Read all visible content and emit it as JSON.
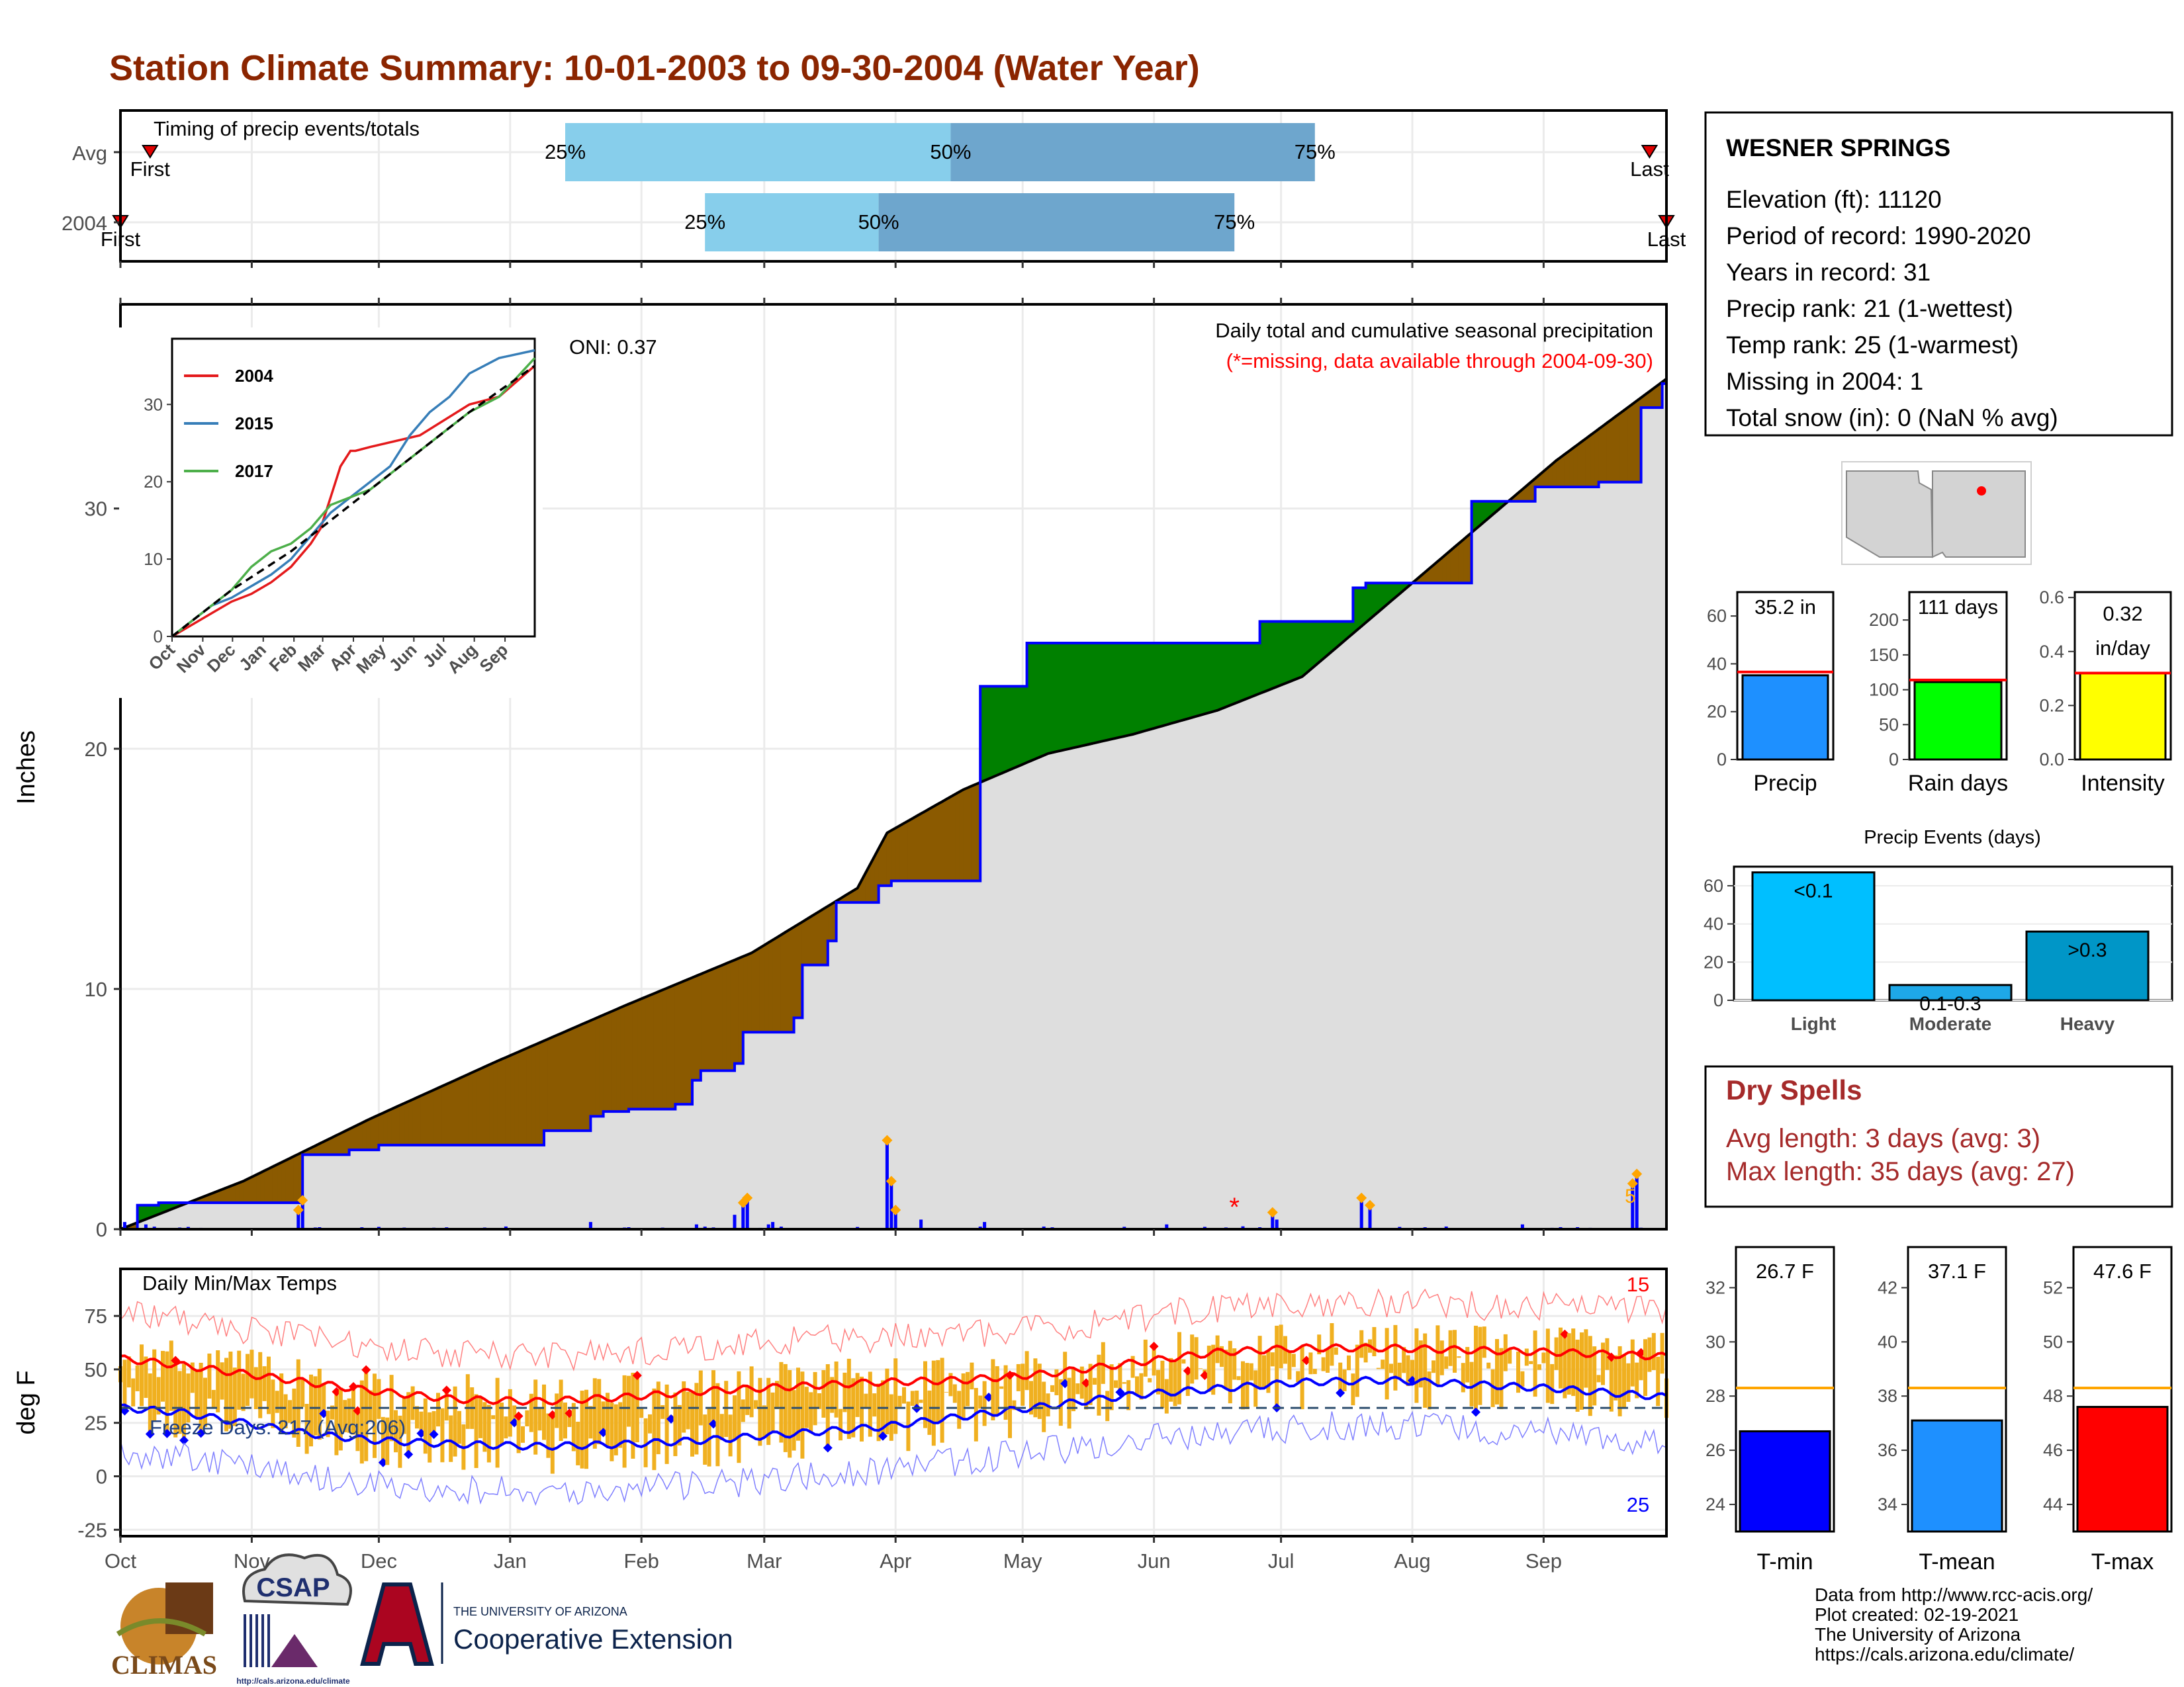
{
  "title": "Station Climate Summary: 10-01-2003 to 09-30-2004 (Water Year)",
  "colors": {
    "title": "#8b2500",
    "q_light": "#87ceeb",
    "q_dark": "#6ea6cd",
    "deficit": "#8b5a00",
    "surplus": "#008000",
    "cum_obs": "#0000ff",
    "cum_avg": "#000000",
    "fill": "#dedede",
    "tmax": "#ff0000",
    "tmin": "#0000ff",
    "temp_bar": "#f0b020"
  },
  "timing": {
    "title": "Timing of precip events/totals",
    "rows": [
      {
        "label": "Avg",
        "first_label": "First",
        "last_label": "Last",
        "first_day": 8,
        "last_day": 362,
        "p25_day": 106,
        "p50_day": 197,
        "p75_day": 283,
        "p25": "25%",
        "p50": "50%",
        "p75": "75%"
      },
      {
        "label": "2004",
        "first_label": "First",
        "last_label": "Last",
        "first_day": 1,
        "last_day": 366,
        "p25_day": 139,
        "p50_day": 180,
        "p75_day": 264,
        "p25": "25%",
        "p50": "50%",
        "p75": "75%"
      }
    ]
  },
  "precip_panel": {
    "ylabel": "Inches",
    "yticks": [
      0,
      10,
      20,
      30
    ],
    "subtitle": "Daily total and cumulative seasonal precipitation",
    "missing_note": "(*=missing, data available through 2004-09-30)",
    "oni": "ONI: 0.37",
    "label_5": "5",
    "months": [
      "Oct",
      "Nov",
      "Dec",
      "Jan",
      "Feb",
      "Mar",
      "Apr",
      "May",
      "Jun",
      "Jul",
      "Aug",
      "Sep"
    ]
  },
  "inset": {
    "yticks": [
      0,
      10,
      20,
      30
    ],
    "months": [
      "Oct",
      "Nov",
      "Dec",
      "Jan",
      "Feb",
      "Mar",
      "Apr",
      "May",
      "Jun",
      "Jul",
      "Aug",
      "Sep"
    ],
    "legend": [
      {
        "name": "2004",
        "color": "#e41a1c"
      },
      {
        "name": "2015",
        "color": "#377eb8"
      },
      {
        "name": "2017",
        "color": "#4daf4a"
      }
    ]
  },
  "temp_panel": {
    "ylabel": "deg F",
    "title": "Daily Min/Max Temps",
    "freeze": "Freeze Days: 217 (Avg:206)",
    "count_hi": "15",
    "count_lo": "25",
    "yticks": [
      -25,
      0,
      25,
      50,
      75
    ],
    "months": [
      "Oct",
      "Nov",
      "Dec",
      "Jan",
      "Feb",
      "Mar",
      "Apr",
      "May",
      "Jun",
      "Jul",
      "Aug",
      "Sep"
    ]
  },
  "station": {
    "name": "WESNER SPRINGS",
    "lines": [
      "Elevation (ft): 11120",
      "Period of record: 1990-2020",
      "Years in record: 31",
      "Precip rank: 21 (1-wettest)",
      "Temp rank: 25 (1-warmest)",
      "Missing in 2004: 1",
      "Total snow (in): 0 (NaN % avg)"
    ]
  },
  "mini_bars": [
    {
      "label": "Precip",
      "value": 35.2,
      "value_label": "35.2 in",
      "avg": 36.6,
      "ymax": 70,
      "yticks": [
        0,
        20,
        40,
        60
      ],
      "color": "#1e90ff"
    },
    {
      "label": "Rain days",
      "value": 111,
      "value_label": "111 days",
      "avg": 114,
      "ymax": 240,
      "yticks": [
        0,
        50,
        100,
        150,
        200
      ],
      "color": "#00ff00"
    },
    {
      "label": "Intensity",
      "value": 0.32,
      "value_label": "0.32 in/day",
      "avg": 0.32,
      "ymax": 0.62,
      "yticks": [
        0.0,
        0.2,
        0.4,
        0.6
      ],
      "color": "#ffff00"
    }
  ],
  "events": {
    "title": "Precip Events (days)",
    "yticks": [
      0,
      20,
      40,
      60
    ],
    "bars": [
      {
        "label": "Light",
        "inner": "<0.1",
        "value": 67,
        "color": "#00bfff"
      },
      {
        "label": "Moderate",
        "inner": "0.1-0.3",
        "value": 8,
        "color": "#1ea8e8"
      },
      {
        "label": "Heavy",
        "inner": ">0.3",
        "value": 36,
        "color": "#0096c7"
      }
    ]
  },
  "dry_spells": {
    "title": "Dry Spells",
    "avg": "Avg length: 3 days (avg: 3)",
    "max": "Max length: 35 days (avg: 27)"
  },
  "temp_bars": [
    {
      "label": "T-min",
      "value": 26.7,
      "value_label": "26.7 F",
      "avg": 28.3,
      "ymin": 23,
      "ymax": 33.5,
      "yticks": [
        24,
        26,
        28,
        30,
        32
      ],
      "color": "#0000ff"
    },
    {
      "label": "T-mean",
      "value": 37.1,
      "value_label": "37.1 F",
      "avg": 38.3,
      "ymin": 33,
      "ymax": 43.5,
      "yticks": [
        34,
        36,
        38,
        40,
        42
      ],
      "color": "#1e90ff"
    },
    {
      "label": "T-max",
      "value": 47.6,
      "value_label": "47.6 F",
      "avg": 48.3,
      "ymin": 43,
      "ymax": 53.5,
      "yticks": [
        44,
        46,
        48,
        50,
        52
      ],
      "color": "#ff0000"
    }
  ],
  "footer": {
    "lines": [
      "Data from http://www.rcc-acis.org/",
      "Plot created: 02-19-2021",
      "The University of Arizona",
      "https://cals.arizona.edu/climate/"
    ],
    "climas": "CLIMAS",
    "csap": "CSAP",
    "csap_url": "http://cals.arizona.edu/climate",
    "ua_small": "THE UNIVERSITY OF ARIZONA",
    "ua_big": "Cooperative Extension"
  },
  "chart_data": {
    "type": "area",
    "title": "Daily total and cumulative seasonal precipitation",
    "ylabel": "Inches",
    "ylim": [
      0,
      38.5
    ],
    "x_unit": "day of water year (1 = Oct 1)",
    "cumulative_2004": {
      "x": [
        1,
        5,
        10,
        20,
        28,
        42,
        44,
        55,
        62,
        75,
        88,
        101,
        112,
        115,
        121,
        132,
        136,
        138,
        146,
        148,
        160,
        162,
        168,
        170,
        180,
        183,
        186,
        190,
        195,
        204,
        215,
        225,
        232,
        240,
        245,
        254,
        263,
        270,
        275,
        282,
        292,
        295,
        300,
        310,
        320,
        335,
        340,
        350,
        352,
        360,
        365
      ],
      "y": [
        0.0,
        1.0,
        1.1,
        1.1,
        1.1,
        1.1,
        3.1,
        3.3,
        3.5,
        3.5,
        3.5,
        4.1,
        4.7,
        4.9,
        5.0,
        5.2,
        6.2,
        6.6,
        6.9,
        8.2,
        8.8,
        11.0,
        12.0,
        13.6,
        14.3,
        14.5,
        14.5,
        14.5,
        14.5,
        22.6,
        24.4,
        24.4,
        24.4,
        24.4,
        24.4,
        24.4,
        24.4,
        25.3,
        25.3,
        25.3,
        26.7,
        26.9,
        26.9,
        26.9,
        30.3,
        30.9,
        30.9,
        31.1,
        31.1,
        34.2,
        35.2
      ]
    },
    "cumulative_avg": {
      "x": [
        1,
        30,
        60,
        90,
        120,
        150,
        175,
        182,
        200,
        220,
        240,
        260,
        280,
        300,
        320,
        340,
        366
      ],
      "y": [
        0.0,
        2.0,
        4.6,
        7.0,
        9.3,
        11.5,
        14.2,
        16.5,
        18.3,
        19.8,
        20.6,
        21.6,
        23.0,
        26.0,
        29.0,
        32.0,
        35.4
      ]
    },
    "daily_precip_events": {
      "x": [
        2,
        7,
        43,
        44,
        112,
        137,
        146,
        148,
        149,
        154,
        155,
        182,
        183,
        184,
        190,
        205,
        248,
        273,
        274,
        294,
        296,
        332,
        358,
        359
      ],
      "y": [
        0.3,
        0.2,
        0.8,
        1.2,
        0.3,
        0.2,
        0.6,
        1.1,
        1.3,
        0.2,
        0.3,
        3.7,
        2.0,
        0.8,
        0.4,
        0.3,
        0.2,
        0.7,
        0.4,
        1.3,
        1.0,
        0.2,
        1.9,
        2.3
      ]
    },
    "missing_day": 264,
    "temperature": {
      "ylabel": "deg F",
      "ylim": [
        -28,
        97
      ],
      "tmax_smooth": {
        "x": [
          1,
          15,
          30,
          45,
          60,
          80,
          100,
          120,
          140,
          160,
          180,
          200,
          220,
          240,
          260,
          280,
          300,
          320,
          340,
          366
        ],
        "y": [
          55,
          52,
          48,
          44,
          40,
          36,
          35,
          37,
          40,
          42,
          44,
          45,
          48,
          53,
          58,
          60,
          60,
          59,
          58,
          56
        ]
      },
      "tmin_smooth": {
        "x": [
          1,
          15,
          30,
          45,
          60,
          80,
          100,
          120,
          140,
          160,
          180,
          200,
          220,
          240,
          260,
          280,
          300,
          320,
          340,
          366
        ],
        "y": [
          32,
          30,
          25,
          20,
          17,
          15,
          14,
          15,
          17,
          20,
          23,
          28,
          33,
          38,
          41,
          44,
          45,
          43,
          41,
          37
        ]
      },
      "freeze_line": 32,
      "freeze_days": 217,
      "freeze_days_avg": 206
    },
    "inset_series": [
      {
        "name": "2004",
        "x": [
          0,
          20,
          40,
          60,
          80,
          100,
          120,
          140,
          150,
          160,
          170,
          180,
          185,
          200,
          250,
          300,
          330,
          366
        ],
        "y": [
          0,
          1.5,
          3,
          4.5,
          5.5,
          7,
          9,
          12,
          14,
          18,
          22,
          24,
          24,
          24.5,
          26,
          30,
          31,
          35
        ]
      },
      {
        "name": "2015",
        "x": [
          0,
          20,
          40,
          60,
          80,
          100,
          120,
          140,
          160,
          180,
          200,
          220,
          240,
          260,
          280,
          300,
          330,
          366
        ],
        "y": [
          0,
          2,
          4,
          5,
          6.5,
          8,
          10,
          13,
          16,
          18,
          20,
          22,
          26,
          29,
          31,
          34,
          36,
          37
        ]
      },
      {
        "name": "2017",
        "x": [
          0,
          20,
          40,
          60,
          80,
          100,
          120,
          140,
          160,
          180,
          200,
          220,
          240,
          260,
          280,
          300,
          330,
          366
        ],
        "y": [
          0,
          2,
          4,
          6,
          9,
          11,
          12,
          14,
          17,
          18,
          19,
          21,
          23,
          25,
          27,
          29,
          31,
          36
        ]
      },
      {
        "name": "average",
        "x": [
          0,
          60,
          120,
          180,
          240,
          300,
          366
        ],
        "y": [
          0,
          6,
          11,
          17,
          23,
          29,
          35
        ]
      }
    ]
  }
}
